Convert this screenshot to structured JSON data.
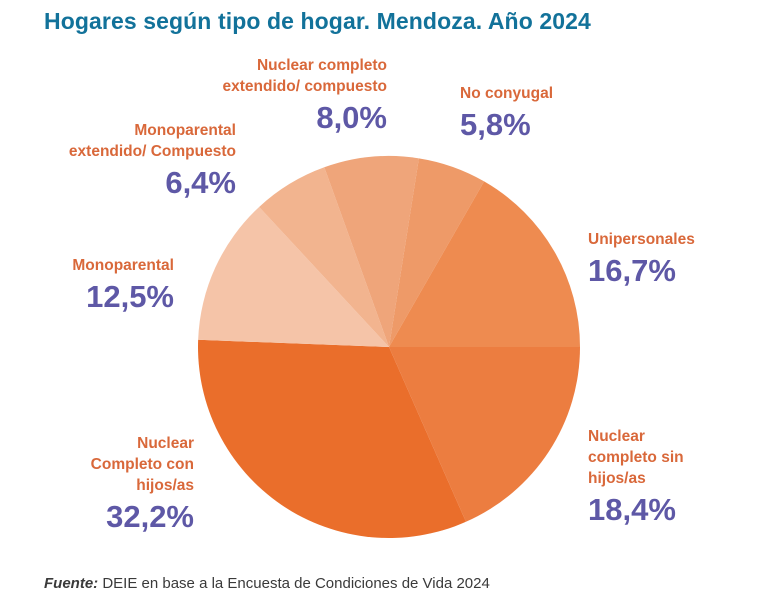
{
  "chart_data": {
    "type": "pie",
    "title": "Hogares según tipo de hogar. Mendoza. Año 2024",
    "unit": "%",
    "slices": [
      {
        "label": "Nuclear completo sin hijos/as",
        "value": 18.4,
        "display": "18,4%",
        "color": "#EC7D40"
      },
      {
        "label": "Nuclear Completo con hijos/as",
        "value": 32.2,
        "display": "32,2%",
        "color": "#EA6E2B"
      },
      {
        "label": "Monoparental",
        "value": 12.5,
        "display": "12,5%",
        "color": "#F5C4A8"
      },
      {
        "label": "Monoparental extendido/ Compuesto",
        "value": 6.4,
        "display": "6,4%",
        "color": "#F2B48F"
      },
      {
        "label": "Nuclear completo extendido/ compuesto",
        "value": 8.0,
        "display": "8,0%",
        "color": "#EFA57A"
      },
      {
        "label": "No conyugal",
        "value": 5.8,
        "display": "5,8%",
        "color": "#EE9A68"
      },
      {
        "label": "Unipersonales",
        "value": 16.7,
        "display": "16,7%",
        "color": "#EE8B50"
      }
    ],
    "start_direction": "3 o'clock, clockwise"
  },
  "labels": {
    "sin_hijos": {
      "name": "Nuclear\ncompleto sin\nhijos/as",
      "pct": "18,4%"
    },
    "con_hijos": {
      "name": "Nuclear\nCompleto con\nhijos/as",
      "pct": "32,2%"
    },
    "monoparental": {
      "name": "Monoparental",
      "pct": "12,5%"
    },
    "mono_ext": {
      "name": "Monoparental\nextendido/ Compuesto",
      "pct": "6,4%"
    },
    "nuclear_ext": {
      "name": "Nuclear completo\nextendido/ compuesto",
      "pct": "8,0%"
    },
    "no_conyugal": {
      "name": "No conyugal",
      "pct": "5,8%"
    },
    "unipersonales": {
      "name": "Unipersonales",
      "pct": "16,7%"
    }
  },
  "colors": {
    "title": "#12729A",
    "label_name": "#D9683A",
    "label_pct": "#5E58A6"
  },
  "source": {
    "lead": "Fuente:",
    "text": " DEIE en base a la Encuesta de Condiciones de Vida 2024"
  }
}
